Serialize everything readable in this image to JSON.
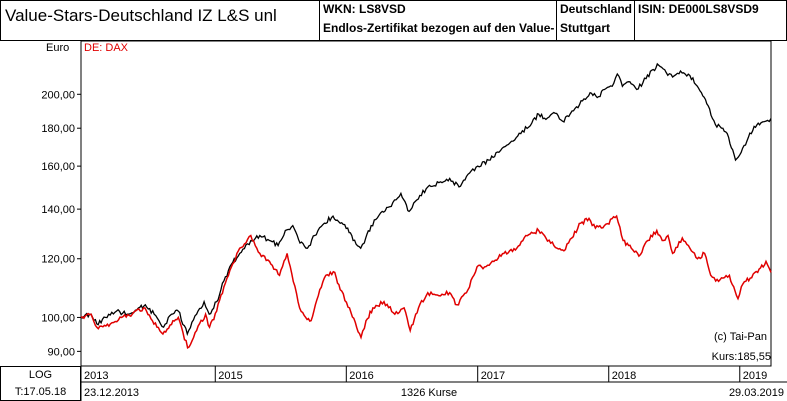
{
  "header": {
    "title": "Value-Stars-Deutschland IZ L&S  unl",
    "wkn": "WKN: LS8VSD",
    "description": "Endlos-Zertifikat bezogen auf den Value-",
    "exchange_line1": "Deutschland",
    "exchange_line2": "Stuttgart",
    "isin": "ISIN: DE000LS8VSD9"
  },
  "footer": {
    "log_label": "LOG",
    "date_label": "T:17.05.18",
    "start_date": "23.12.2013",
    "count": "1326 Kurse",
    "end_date": "29.03.2019"
  },
  "chart_data": {
    "type": "line",
    "y_unit_label": "Euro",
    "legend": "DE: DAX",
    "copyright": "(c) Tai-Pan",
    "last_price_label": "Kurs:185,55",
    "y_scale": "log",
    "ylim": [
      86,
      236
    ],
    "xlim": [
      "2013-12-23",
      "2019-03-29"
    ],
    "y_ticks": [
      {
        "value": 90,
        "label": "90,00"
      },
      {
        "value": 100,
        "label": "100,00"
      },
      {
        "value": 120,
        "label": "120,00"
      },
      {
        "value": 140,
        "label": "140,00"
      },
      {
        "value": 160,
        "label": "160,00"
      },
      {
        "value": 180,
        "label": "180,00"
      },
      {
        "value": 200,
        "label": "200,00"
      }
    ],
    "x_ticks": [
      {
        "date": "2013-12-23",
        "label": "2013"
      },
      {
        "date": "2015-01-01",
        "label": "2015"
      },
      {
        "date": "2016-01-01",
        "label": "2016"
      },
      {
        "date": "2017-01-01",
        "label": "2017"
      },
      {
        "date": "2018-01-01",
        "label": "2018"
      },
      {
        "date": "2019-01-01",
        "label": "2019"
      }
    ],
    "series": [
      {
        "color": "#000000",
        "points": [
          [
            "2013-12-23",
            100
          ],
          [
            "2014-01-20",
            101
          ],
          [
            "2014-02-05",
            98
          ],
          [
            "2014-03-01",
            100
          ],
          [
            "2014-04-01",
            102
          ],
          [
            "2014-05-01",
            101
          ],
          [
            "2014-06-01",
            103
          ],
          [
            "2014-06-20",
            104
          ],
          [
            "2014-07-15",
            101
          ],
          [
            "2014-08-10",
            97
          ],
          [
            "2014-09-01",
            101
          ],
          [
            "2014-09-20",
            102
          ],
          [
            "2014-10-15",
            95
          ],
          [
            "2014-11-10",
            101
          ],
          [
            "2014-12-01",
            105
          ],
          [
            "2014-12-15",
            101
          ],
          [
            "2015-01-05",
            105
          ],
          [
            "2015-01-25",
            112
          ],
          [
            "2015-02-15",
            118
          ],
          [
            "2015-03-10",
            122
          ],
          [
            "2015-04-10",
            127
          ],
          [
            "2015-05-05",
            129
          ],
          [
            "2015-06-01",
            127
          ],
          [
            "2015-06-25",
            125
          ],
          [
            "2015-07-15",
            131
          ],
          [
            "2015-08-05",
            133
          ],
          [
            "2015-08-25",
            126
          ],
          [
            "2015-09-15",
            124
          ],
          [
            "2015-10-05",
            129
          ],
          [
            "2015-11-01",
            134
          ],
          [
            "2015-11-25",
            137
          ],
          [
            "2015-12-15",
            134
          ],
          [
            "2016-01-05",
            132
          ],
          [
            "2016-01-20",
            127
          ],
          [
            "2016-02-10",
            124
          ],
          [
            "2016-02-20",
            126
          ],
          [
            "2016-03-10",
            133
          ],
          [
            "2016-04-10",
            139
          ],
          [
            "2016-05-01",
            141
          ],
          [
            "2016-06-01",
            147
          ],
          [
            "2016-06-24",
            139
          ],
          [
            "2016-07-15",
            144
          ],
          [
            "2016-08-15",
            150
          ],
          [
            "2016-09-15",
            152
          ],
          [
            "2016-10-15",
            154
          ],
          [
            "2016-11-10",
            150
          ],
          [
            "2016-12-05",
            156
          ],
          [
            "2017-01-01",
            160
          ],
          [
            "2017-02-01",
            163
          ],
          [
            "2017-03-01",
            167
          ],
          [
            "2017-04-01",
            172
          ],
          [
            "2017-05-01",
            177
          ],
          [
            "2017-06-01",
            183
          ],
          [
            "2017-06-20",
            188
          ],
          [
            "2017-07-10",
            185
          ],
          [
            "2017-08-01",
            189
          ],
          [
            "2017-08-25",
            184
          ],
          [
            "2017-09-25",
            190
          ],
          [
            "2017-10-20",
            196
          ],
          [
            "2017-11-10",
            201
          ],
          [
            "2017-11-30",
            198
          ],
          [
            "2017-12-20",
            203
          ],
          [
            "2018-01-15",
            207
          ],
          [
            "2018-01-25",
            213
          ],
          [
            "2018-02-08",
            205
          ],
          [
            "2018-02-25",
            208
          ],
          [
            "2018-03-20",
            203
          ],
          [
            "2018-04-15",
            210
          ],
          [
            "2018-05-05",
            216
          ],
          [
            "2018-05-20",
            219
          ],
          [
            "2018-06-10",
            214
          ],
          [
            "2018-06-28",
            211
          ],
          [
            "2018-07-20",
            215
          ],
          [
            "2018-08-15",
            212
          ],
          [
            "2018-09-01",
            206
          ],
          [
            "2018-09-20",
            199
          ],
          [
            "2018-10-05",
            193
          ],
          [
            "2018-10-25",
            182
          ],
          [
            "2018-11-15",
            180
          ],
          [
            "2018-12-01",
            175
          ],
          [
            "2018-12-20",
            163
          ],
          [
            "2019-01-05",
            167
          ],
          [
            "2019-01-25",
            175
          ],
          [
            "2019-02-10",
            181
          ],
          [
            "2019-03-01",
            183
          ],
          [
            "2019-03-15",
            184
          ],
          [
            "2019-03-29",
            185.55
          ]
        ]
      },
      {
        "name": "DE: DAX",
        "color": "#e00000",
        "points": [
          [
            "2013-12-23",
            100
          ],
          [
            "2014-01-20",
            101
          ],
          [
            "2014-02-05",
            97
          ],
          [
            "2014-03-15",
            98
          ],
          [
            "2014-04-15",
            100
          ],
          [
            "2014-05-15",
            101
          ],
          [
            "2014-06-15",
            103
          ],
          [
            "2014-07-10",
            99
          ],
          [
            "2014-08-08",
            95
          ],
          [
            "2014-09-05",
            99
          ],
          [
            "2014-09-20",
            100
          ],
          [
            "2014-10-16",
            91
          ],
          [
            "2014-11-10",
            96
          ],
          [
            "2014-12-05",
            101
          ],
          [
            "2014-12-16",
            97
          ],
          [
            "2015-01-05",
            102
          ],
          [
            "2015-01-25",
            110
          ],
          [
            "2015-02-15",
            117
          ],
          [
            "2015-03-10",
            124
          ],
          [
            "2015-04-10",
            129
          ],
          [
            "2015-05-05",
            122
          ],
          [
            "2015-06-01",
            119
          ],
          [
            "2015-06-29",
            114
          ],
          [
            "2015-07-20",
            122
          ],
          [
            "2015-08-24",
            103
          ],
          [
            "2015-09-10",
            100
          ],
          [
            "2015-09-25",
            99
          ],
          [
            "2015-10-15",
            107
          ],
          [
            "2015-11-05",
            114
          ],
          [
            "2015-11-30",
            115
          ],
          [
            "2015-12-15",
            109
          ],
          [
            "2016-01-10",
            103
          ],
          [
            "2016-02-11",
            94
          ],
          [
            "2016-02-25",
            99
          ],
          [
            "2016-03-15",
            103
          ],
          [
            "2016-04-15",
            105
          ],
          [
            "2016-05-15",
            101
          ],
          [
            "2016-06-10",
            103
          ],
          [
            "2016-06-27",
            96
          ],
          [
            "2016-07-20",
            103
          ],
          [
            "2016-08-15",
            108
          ],
          [
            "2016-09-15",
            107
          ],
          [
            "2016-10-15",
            108
          ],
          [
            "2016-11-04",
            104
          ],
          [
            "2016-12-05",
            109
          ],
          [
            "2016-12-30",
            117
          ],
          [
            "2017-01-20",
            117
          ],
          [
            "2017-02-15",
            119
          ],
          [
            "2017-03-15",
            122
          ],
          [
            "2017-04-20",
            124
          ],
          [
            "2017-05-15",
            129
          ],
          [
            "2017-06-20",
            131
          ],
          [
            "2017-07-10",
            128
          ],
          [
            "2017-08-10",
            124
          ],
          [
            "2017-08-29",
            123
          ],
          [
            "2017-09-20",
            128
          ],
          [
            "2017-10-15",
            134
          ],
          [
            "2017-11-07",
            136
          ],
          [
            "2017-11-25",
            132
          ],
          [
            "2017-12-20",
            133
          ],
          [
            "2018-01-23",
            137
          ],
          [
            "2018-02-10",
            127
          ],
          [
            "2018-03-05",
            124
          ],
          [
            "2018-03-26",
            121
          ],
          [
            "2018-04-20",
            127
          ],
          [
            "2018-05-15",
            131
          ],
          [
            "2018-05-30",
            127
          ],
          [
            "2018-06-15",
            129
          ],
          [
            "2018-06-28",
            122
          ],
          [
            "2018-07-25",
            128
          ],
          [
            "2018-08-15",
            124
          ],
          [
            "2018-09-05",
            120
          ],
          [
            "2018-09-25",
            122
          ],
          [
            "2018-10-12",
            114
          ],
          [
            "2018-10-26",
            112
          ],
          [
            "2018-11-15",
            113
          ],
          [
            "2018-12-03",
            114
          ],
          [
            "2018-12-27",
            106
          ],
          [
            "2019-01-10",
            111
          ],
          [
            "2019-01-30",
            113
          ],
          [
            "2019-02-20",
            115
          ],
          [
            "2019-03-15",
            119
          ],
          [
            "2019-03-29",
            115
          ]
        ]
      }
    ]
  }
}
